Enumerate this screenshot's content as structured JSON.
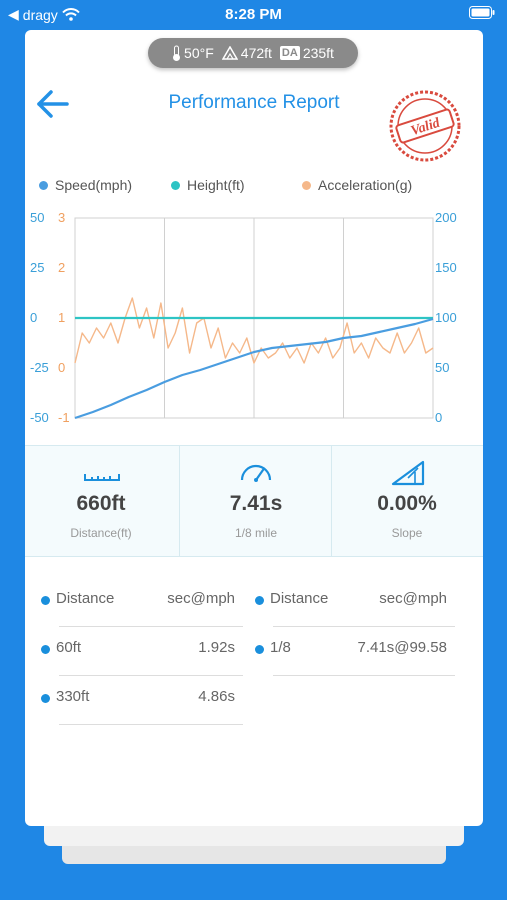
{
  "status_bar": {
    "carrier": "dragy",
    "time": "8:28 PM"
  },
  "environment": {
    "temperature": "50°F",
    "altitude": "472ft",
    "da_label": "DA",
    "density_altitude": "235ft"
  },
  "header": {
    "title": "Performance Report",
    "stamp_text": "Valid"
  },
  "legend": [
    {
      "label": "Speed(mph)",
      "color": "#4a9de0"
    },
    {
      "label": "Height(ft)",
      "color": "#2ec4c4"
    },
    {
      "label": "Acceleration(g)",
      "color": "#f5b88a"
    }
  ],
  "chart_data": {
    "type": "line",
    "y_left_height_ticks": [
      "50",
      "25",
      "0",
      "-25",
      "-50"
    ],
    "y_left_accel_ticks": [
      "3",
      "2",
      "1",
      "0",
      "-1"
    ],
    "y_right_speed_ticks": [
      "200",
      "150",
      "100",
      "50",
      "0"
    ],
    "height_ylim": [
      -50,
      50
    ],
    "accel_ylim": [
      -1,
      3
    ],
    "speed_ylim": [
      0,
      200
    ],
    "grid": true,
    "legend_position": "top",
    "series": [
      {
        "name": "Speed(mph)",
        "color": "#4a9de0",
        "x": [
          0,
          0.05,
          0.1,
          0.15,
          0.2,
          0.25,
          0.3,
          0.35,
          0.4,
          0.45,
          0.5,
          0.55,
          0.6,
          0.65,
          0.7,
          0.75,
          0.8,
          0.85,
          0.9,
          0.95,
          1.0
        ],
        "y": [
          0,
          6,
          13,
          21,
          28,
          36,
          43,
          48,
          54,
          60,
          66,
          70,
          72,
          74,
          76,
          80,
          82,
          86,
          90,
          94,
          99
        ]
      },
      {
        "name": "Height(ft)",
        "color": "#2ec4c4",
        "x": [
          0,
          1
        ],
        "y": [
          0,
          0
        ]
      },
      {
        "name": "Acceleration(g)",
        "color": "#f5b88a",
        "x": [
          0,
          0.02,
          0.04,
          0.06,
          0.08,
          0.1,
          0.12,
          0.14,
          0.16,
          0.18,
          0.2,
          0.22,
          0.24,
          0.26,
          0.28,
          0.3,
          0.32,
          0.34,
          0.36,
          0.38,
          0.4,
          0.42,
          0.44,
          0.46,
          0.48,
          0.5,
          0.52,
          0.54,
          0.56,
          0.58,
          0.6,
          0.62,
          0.64,
          0.66,
          0.68,
          0.7,
          0.72,
          0.74,
          0.76,
          0.78,
          0.8,
          0.82,
          0.84,
          0.86,
          0.88,
          0.9,
          0.92,
          0.94,
          0.96,
          0.98,
          1.0
        ],
        "y": [
          0.1,
          0.7,
          0.5,
          0.8,
          0.6,
          0.9,
          0.5,
          1.0,
          1.4,
          0.8,
          1.2,
          0.6,
          1.3,
          0.4,
          0.7,
          1.2,
          0.3,
          0.9,
          1.0,
          0.4,
          0.8,
          0.2,
          0.5,
          0.3,
          0.6,
          0.1,
          0.4,
          0.2,
          0.3,
          0.5,
          0.2,
          0.4,
          0.1,
          0.5,
          0.3,
          0.6,
          0.2,
          0.4,
          0.9,
          0.3,
          0.5,
          0.2,
          0.6,
          0.4,
          0.3,
          0.7,
          0.3,
          0.5,
          0.8,
          0.3,
          0.4
        ]
      }
    ]
  },
  "stats": [
    {
      "value": "660ft",
      "label": "Distance(ft)",
      "icon": "ruler-icon"
    },
    {
      "value": "7.41s",
      "label": "1/8 mile",
      "icon": "speedometer-icon"
    },
    {
      "value": "0.00%",
      "label": "Slope",
      "icon": "slope-icon"
    }
  ],
  "results": {
    "headers": [
      {
        "key": "Distance",
        "value": "sec@mph"
      },
      {
        "key": "Distance",
        "value": "sec@mph"
      }
    ],
    "rows": [
      {
        "key": "60ft",
        "value": "1.92s"
      },
      {
        "key": "1/8",
        "value": "7.41s@99.58"
      },
      {
        "key": "330ft",
        "value": "4.86s"
      }
    ]
  }
}
